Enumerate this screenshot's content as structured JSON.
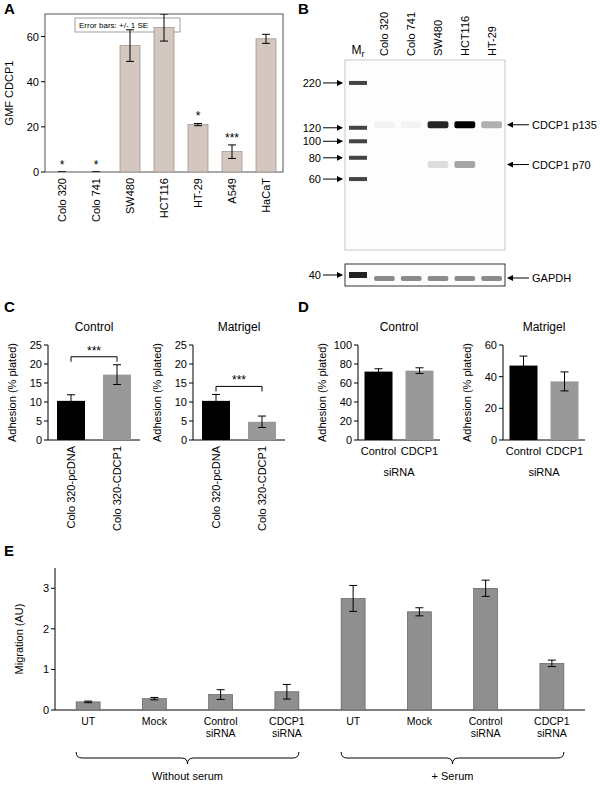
{
  "chart_data": [
    {
      "panel": "A",
      "type": "bar",
      "ylabel": "GMF CDCP1",
      "note": "Error bars: +/- 1 SE",
      "categories": [
        "Colo 320",
        "Colo 741",
        "SW480",
        "HCT116",
        "HT-29",
        "A549",
        "HaCaT"
      ],
      "values": [
        0,
        0,
        56,
        64,
        21,
        9,
        59
      ],
      "errors": [
        0,
        0,
        7,
        6,
        0.5,
        3,
        2
      ],
      "annotations": [
        "*",
        "*",
        null,
        null,
        "*",
        "***",
        null
      ],
      "color": "#d3c7bf",
      "ylim": [
        0,
        70
      ],
      "yticks": [
        0,
        20,
        40,
        60
      ]
    },
    {
      "panel": "B",
      "type": "blot",
      "ladder_label": "Mr",
      "categories": [
        "Colo 320",
        "Colo 741",
        "SW480",
        "HCT116",
        "HT-29"
      ],
      "log": "y",
      "ylim": [
        23,
        300
      ],
      "yticks": [
        220,
        120,
        100,
        80,
        60
      ],
      "bands": [
        {
          "name": "CDCP1 p135",
          "mw": 125,
          "values": [
            0.04,
            0.04,
            0.85,
            1.0,
            0.3
          ]
        },
        {
          "name": "CDCP1 p70",
          "mw": 73,
          "values": [
            0,
            0,
            0.12,
            0.35,
            0
          ]
        }
      ],
      "loading_control": {
        "name": "GAPDH",
        "marker": 40,
        "values": [
          0.45,
          0.45,
          0.45,
          0.45,
          0.45
        ]
      }
    },
    {
      "panel": "C",
      "type": "bar",
      "title": "Control",
      "ylabel": "Adhesion (% plated)",
      "categories": [
        "Colo 320-pcDNA",
        "Colo 320-CDCP1"
      ],
      "values": [
        10.3,
        17.2
      ],
      "errors": [
        1.6,
        2.6
      ],
      "colors": [
        "#000000",
        "#999999"
      ],
      "significance": "***",
      "ylim": [
        0,
        25
      ],
      "yticks": [
        0,
        5,
        10,
        15,
        20,
        25
      ]
    },
    {
      "type": "bar",
      "title": "Matrigel",
      "ylabel": "Adhesion (% plated)",
      "categories": [
        "Colo 320-pcDNA",
        "Colo 320-CDCP1"
      ],
      "values": [
        10.3,
        4.8
      ],
      "errors": [
        1.7,
        1.5
      ],
      "colors": [
        "#000000",
        "#999999"
      ],
      "significance": "***",
      "ylim": [
        0,
        25
      ],
      "yticks": [
        0,
        5,
        10,
        15,
        20,
        25
      ]
    },
    {
      "panel": "D",
      "type": "bar",
      "title": "Control",
      "ylabel": "Adhesion (% plated)",
      "xlabel": "siRNA",
      "categories": [
        "Control",
        "CDCP1"
      ],
      "values": [
        72,
        73
      ],
      "errors": [
        3,
        3
      ],
      "colors": [
        "#000000",
        "#999999"
      ],
      "ylim": [
        0,
        100
      ],
      "yticks": [
        0,
        20,
        40,
        60,
        80,
        100
      ]
    },
    {
      "type": "bar",
      "title": "Matrigel",
      "ylabel": "Adhesion (% plated)",
      "xlabel": "siRNA",
      "categories": [
        "Control",
        "CDCP1"
      ],
      "values": [
        47,
        37
      ],
      "errors": [
        6,
        6
      ],
      "colors": [
        "#000000",
        "#999999"
      ],
      "ylim": [
        0,
        60
      ],
      "yticks": [
        0,
        20,
        40,
        60
      ]
    },
    {
      "panel": "E",
      "type": "bar",
      "ylabel": "Migration (AU)",
      "categories": [
        "UT",
        "Mock",
        "Control siRNA",
        "CDCP1 siRNA",
        "UT",
        "Mock",
        "Control siRNA",
        "CDCP1 siRNA"
      ],
      "values": [
        0.2,
        0.28,
        0.38,
        0.45,
        2.75,
        2.42,
        3.0,
        1.15
      ],
      "errors": [
        0.02,
        0.03,
        0.12,
        0.18,
        0.32,
        0.1,
        0.2,
        0.08
      ],
      "groups": [
        {
          "label": "Without serum",
          "size": 4
        },
        {
          "label": "+ Serum",
          "size": 4
        }
      ],
      "color": "#8f8f8f",
      "ylim": [
        0,
        3.5
      ],
      "yticks": [
        0,
        1,
        2,
        3
      ]
    }
  ]
}
